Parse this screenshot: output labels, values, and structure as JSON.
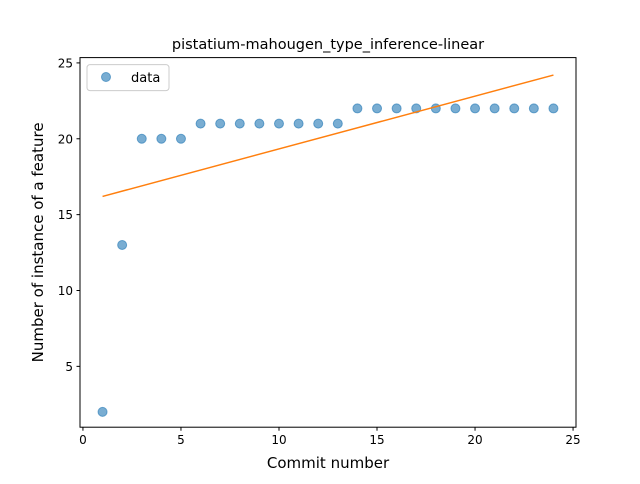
{
  "chart_data": {
    "type": "scatter",
    "title": "pistatium-mahougen_type_inference-linear",
    "xlabel": "Commit number",
    "ylabel": "Number of instance of a feature",
    "xlim": [
      -0.15,
      25.15
    ],
    "ylim": [
      0.99,
      25.35
    ],
    "x_ticks": [
      0,
      5,
      10,
      15,
      20,
      25
    ],
    "y_ticks": [
      5,
      10,
      15,
      20,
      25
    ],
    "grid": false,
    "legend_position": "upper-left",
    "series": [
      {
        "name": "data",
        "type": "scatter",
        "color": "#1f77b4",
        "x": [
          1,
          2,
          3,
          4,
          5,
          6,
          7,
          8,
          9,
          10,
          11,
          12,
          13,
          14,
          15,
          16,
          17,
          18,
          19,
          20,
          21,
          22,
          23,
          24
        ],
        "y": [
          2,
          13,
          20,
          20,
          20,
          21,
          21,
          21,
          21,
          21,
          21,
          21,
          21,
          22,
          22,
          22,
          22,
          22,
          22,
          22,
          22,
          22,
          22,
          22
        ]
      },
      {
        "type": "line",
        "color": "#ff7f0e",
        "x": [
          1,
          24
        ],
        "y": [
          16.2,
          24.2
        ]
      }
    ]
  }
}
